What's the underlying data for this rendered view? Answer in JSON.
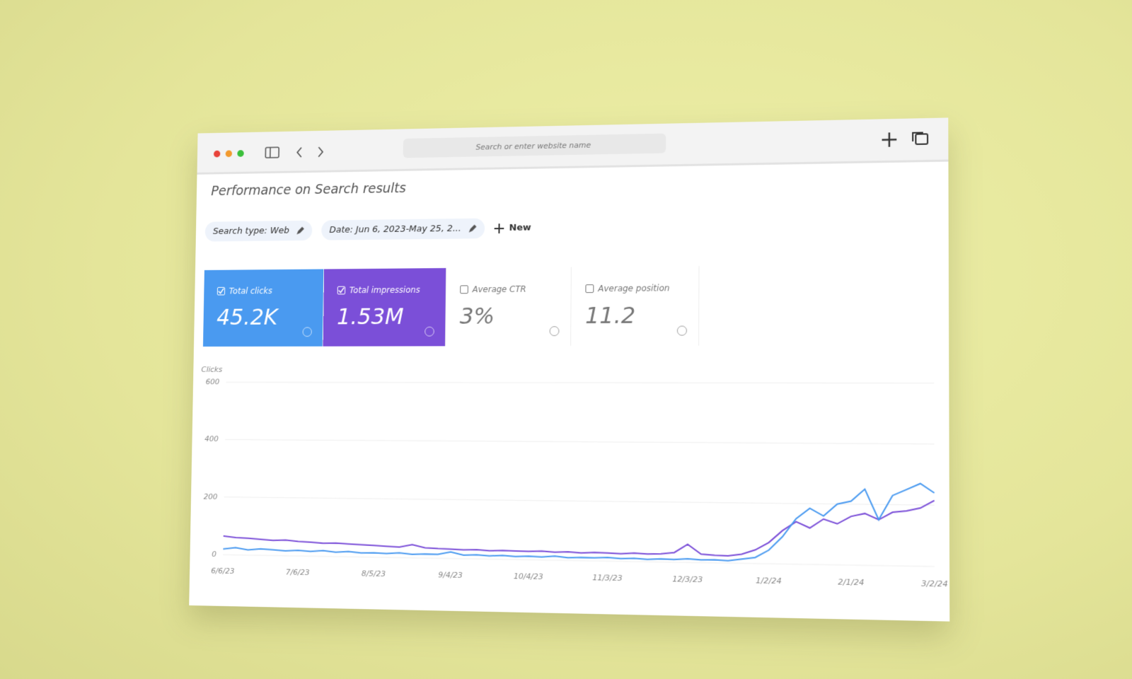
{
  "browser": {
    "address_placeholder": "Search or enter website name"
  },
  "page": {
    "title": "Performance on Search results",
    "filters": [
      "Search type: Web",
      "Date: Jun 6, 2023-May 25, 2..."
    ],
    "new_button": "New"
  },
  "metrics": [
    {
      "label": "Total clicks",
      "value": "45.2K",
      "checked": true,
      "color": "#4a9af0"
    },
    {
      "label": "Total impressions",
      "value": "1.53M",
      "checked": true,
      "color": "#7b4fd8"
    },
    {
      "label": "Average CTR",
      "value": "3%",
      "checked": false,
      "color": "#ffffff"
    },
    {
      "label": "Average position",
      "value": "11.2",
      "checked": false,
      "color": "#ffffff"
    }
  ],
  "chart_data": {
    "type": "line",
    "y_label": "Clicks",
    "categories": [
      "6/6/23",
      null,
      null,
      null,
      null,
      null,
      "7/6/23",
      null,
      null,
      null,
      null,
      null,
      "8/5/23",
      null,
      null,
      null,
      null,
      null,
      "9/4/23",
      null,
      null,
      null,
      null,
      null,
      "10/4/23",
      null,
      null,
      null,
      null,
      null,
      "11/3/23",
      null,
      null,
      null,
      null,
      null,
      "12/3/23",
      null,
      null,
      null,
      null,
      null,
      "1/2/24",
      null,
      null,
      null,
      null,
      null,
      "2/1/24",
      null,
      null,
      null,
      null,
      null,
      "3/2/24"
    ],
    "series": [
      {
        "color": "#7b4fd8",
        "values": [
          65,
          60,
          58,
          55,
          52,
          54,
          50,
          48,
          45,
          46,
          44,
          42,
          40,
          38,
          36,
          45,
          35,
          33,
          32,
          30,
          31,
          28,
          30,
          29,
          28,
          30,
          27,
          29,
          26,
          28,
          27,
          25,
          28,
          26,
          27,
          32,
          60,
          28,
          25,
          24,
          30,
          45,
          70,
          110,
          140,
          120,
          150,
          135,
          160,
          170,
          150,
          175,
          180,
          190,
          215
        ]
      },
      {
        "color": "#4a9af0",
        "values": [
          20,
          25,
          18,
          22,
          20,
          17,
          19,
          16,
          20,
          15,
          18,
          14,
          15,
          13,
          16,
          12,
          14,
          13,
          22,
          12,
          14,
          11,
          13,
          10,
          12,
          10,
          14,
          9,
          11,
          10,
          12,
          9,
          11,
          8,
          10,
          9,
          12,
          9,
          10,
          8,
          14,
          20,
          45,
          90,
          150,
          185,
          160,
          200,
          210,
          250,
          150,
          230,
          250,
          270,
          240
        ]
      }
    ],
    "ylim": [
      0,
      600
    ],
    "yticks": [
      0,
      200,
      400,
      600
    ],
    "grid": true
  }
}
